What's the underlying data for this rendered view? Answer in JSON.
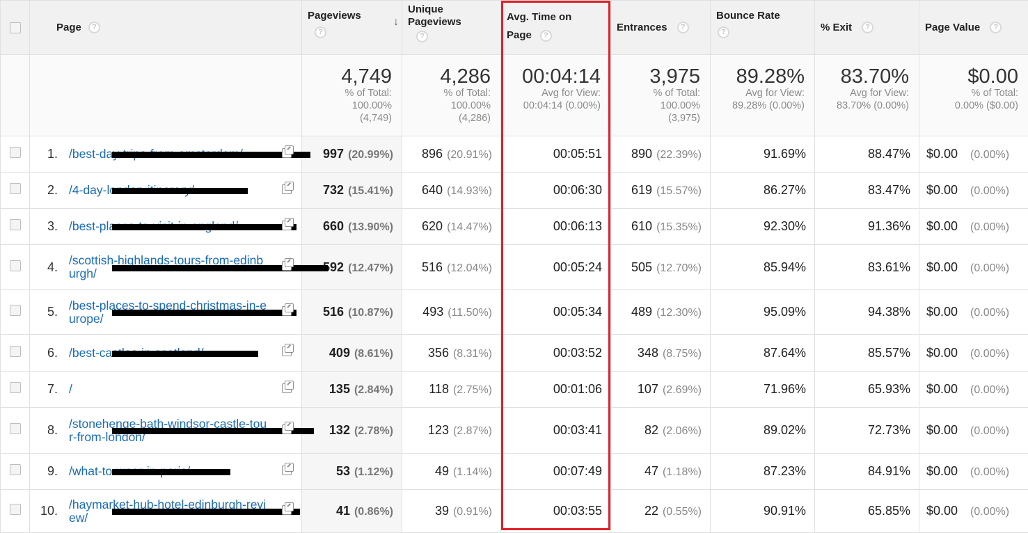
{
  "headers": {
    "page": "Page",
    "pageviews": "Pageviews",
    "unique_line1": "Unique",
    "unique_line2": "Pageviews",
    "avg_line1": "Avg. Time on",
    "avg_line2": "Page",
    "entrances": "Entrances",
    "bounce": "Bounce Rate",
    "exit": "% Exit",
    "value": "Page Value",
    "help": "?",
    "sort": "↓"
  },
  "totals": {
    "pageviews": {
      "big": "4,749",
      "l1": "% of Total:",
      "l2": "100.00%",
      "l3": "(4,749)"
    },
    "unique": {
      "big": "4,286",
      "l1": "% of Total:",
      "l2": "100.00%",
      "l3": "(4,286)"
    },
    "avg": {
      "big": "00:04:14",
      "l1": "Avg for View:",
      "l2": "00:04:14 (0.00%)"
    },
    "entrances": {
      "big": "3,975",
      "l1": "% of Total:",
      "l2": "100.00%",
      "l3": "(3,975)"
    },
    "bounce": {
      "big": "89.28%",
      "l1": "Avg for View:",
      "l2": "89.28% (0.00%)"
    },
    "exit": {
      "big": "83.70%",
      "l1": "Avg for View:",
      "l2": "83.70% (0.00%)"
    },
    "value": {
      "big": "$0.00",
      "l1": "% of Total:",
      "l2": "0.00% ($0.00)"
    }
  },
  "rows": [
    {
      "idx": "1.",
      "url": "/best-day-trips-from-amsterdam/",
      "pv": "997",
      "pv_pct": "(20.99%)",
      "upv": "896",
      "upv_pct": "(20.91%)",
      "avg": "00:05:51",
      "ent": "890",
      "ent_pct": "(22.39%)",
      "bounce": "91.69%",
      "exit": "88.47%",
      "val": "$0.00",
      "val_pct": "(0.00%)"
    },
    {
      "idx": "2.",
      "url": "/4-day-london-itinerary/",
      "pv": "732",
      "pv_pct": "(15.41%)",
      "upv": "640",
      "upv_pct": "(14.93%)",
      "avg": "00:06:30",
      "ent": "619",
      "ent_pct": "(15.57%)",
      "bounce": "86.27%",
      "exit": "83.47%",
      "val": "$0.00",
      "val_pct": "(0.00%)"
    },
    {
      "idx": "3.",
      "url": "/best-places-to-visit-in-england/",
      "pv": "660",
      "pv_pct": "(13.90%)",
      "upv": "620",
      "upv_pct": "(14.47%)",
      "avg": "00:06:13",
      "ent": "610",
      "ent_pct": "(15.35%)",
      "bounce": "92.30%",
      "exit": "91.36%",
      "val": "$0.00",
      "val_pct": "(0.00%)"
    },
    {
      "idx": "4.",
      "url": "/scottish-highlands-tours-from-edinburgh/",
      "pv": "592",
      "pv_pct": "(12.47%)",
      "upv": "516",
      "upv_pct": "(12.04%)",
      "avg": "00:05:24",
      "ent": "505",
      "ent_pct": "(12.70%)",
      "bounce": "85.94%",
      "exit": "83.61%",
      "val": "$0.00",
      "val_pct": "(0.00%)"
    },
    {
      "idx": "5.",
      "url": "/best-places-to-spend-christmas-in-europe/",
      "pv": "516",
      "pv_pct": "(10.87%)",
      "upv": "493",
      "upv_pct": "(11.50%)",
      "avg": "00:05:34",
      "ent": "489",
      "ent_pct": "(12.30%)",
      "bounce": "95.09%",
      "exit": "94.38%",
      "val": "$0.00",
      "val_pct": "(0.00%)"
    },
    {
      "idx": "6.",
      "url": "/best-castles-in-scotland/",
      "pv": "409",
      "pv_pct": "(8.61%)",
      "upv": "356",
      "upv_pct": "(8.31%)",
      "avg": "00:03:52",
      "ent": "348",
      "ent_pct": "(8.75%)",
      "bounce": "87.64%",
      "exit": "85.57%",
      "val": "$0.00",
      "val_pct": "(0.00%)"
    },
    {
      "idx": "7.",
      "url": "/",
      "pv": "135",
      "pv_pct": "(2.84%)",
      "upv": "118",
      "upv_pct": "(2.75%)",
      "avg": "00:01:06",
      "ent": "107",
      "ent_pct": "(2.69%)",
      "bounce": "71.96%",
      "exit": "65.93%",
      "val": "$0.00",
      "val_pct": "(0.00%)"
    },
    {
      "idx": "8.",
      "url": "/stonehenge-bath-windsor-castle-tour-from-london/",
      "pv": "132",
      "pv_pct": "(2.78%)",
      "upv": "123",
      "upv_pct": "(2.87%)",
      "avg": "00:03:41",
      "ent": "82",
      "ent_pct": "(2.06%)",
      "bounce": "89.02%",
      "exit": "72.73%",
      "val": "$0.00",
      "val_pct": "(0.00%)"
    },
    {
      "idx": "9.",
      "url": "/what-to-wear-in-paris/",
      "pv": "53",
      "pv_pct": "(1.12%)",
      "upv": "49",
      "upv_pct": "(1.14%)",
      "avg": "00:07:49",
      "ent": "47",
      "ent_pct": "(1.18%)",
      "bounce": "87.23%",
      "exit": "84.91%",
      "val": "$0.00",
      "val_pct": "(0.00%)"
    },
    {
      "idx": "10.",
      "url": "/haymarket-hub-hotel-edinburgh-review/",
      "pv": "41",
      "pv_pct": "(0.86%)",
      "upv": "39",
      "upv_pct": "(0.91%)",
      "avg": "00:03:55",
      "ent": "22",
      "ent_pct": "(0.55%)",
      "bounce": "90.91%",
      "exit": "65.85%",
      "val": "$0.00",
      "val_pct": "(0.00%)"
    }
  ]
}
